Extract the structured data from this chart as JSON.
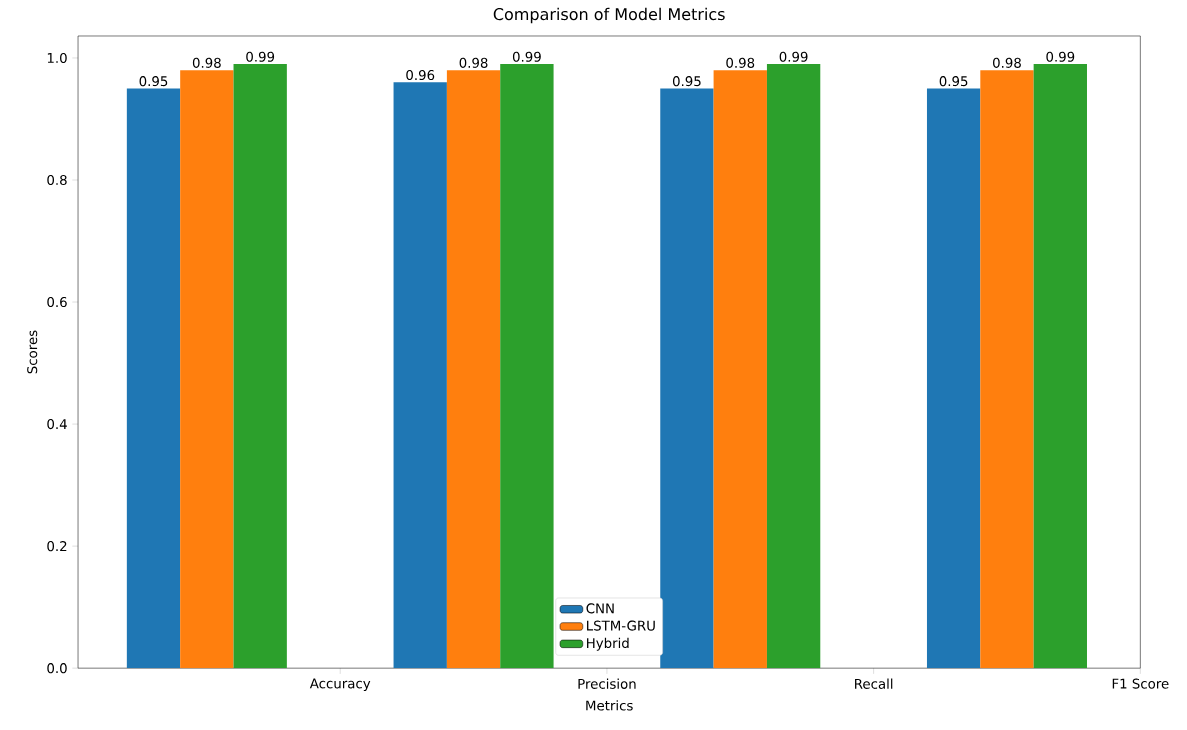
{
  "chart_data": {
    "type": "bar",
    "title": "Comparison of Model Metrics",
    "xlabel": "Metrics",
    "ylabel": "Scores",
    "categories": [
      null,
      "Accuracy",
      null,
      "Precision",
      null,
      "Recall",
      null,
      "F1 Score"
    ],
    "series": [
      {
        "name": "CNN",
        "color": "#1f77b4",
        "values": [
          0.95,
          null,
          0.96,
          null,
          0.95,
          null,
          0.95,
          null
        ]
      },
      {
        "name": "LSTM-GRU",
        "color": "#ff7f0e",
        "values": [
          0.98,
          null,
          0.98,
          null,
          0.98,
          null,
          0.98,
          null
        ]
      },
      {
        "name": "Hybrid",
        "color": "#2ca02c",
        "values": [
          0.99,
          null,
          0.99,
          null,
          0.99,
          null,
          0.99,
          null
        ]
      }
    ],
    "ylim": [
      0,
      1.036
    ],
    "yticks": [
      {
        "value": 0,
        "label": "0.0"
      },
      0.2,
      0.4,
      0.6,
      0.8,
      {
        "value": 1,
        "label": "1.0"
      }
    ],
    "data_labels": true,
    "legend": "bottom",
    "grid": false
  }
}
